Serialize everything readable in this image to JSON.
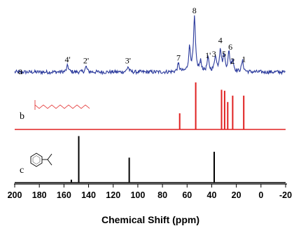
{
  "chart_data": {
    "type": "line",
    "title": "",
    "xlabel": "Chemical Shift (ppm)",
    "ylabel": "",
    "xlim": [
      200,
      -20
    ],
    "x_reversed": true,
    "x_ticks": [
      200,
      180,
      160,
      140,
      120,
      100,
      80,
      60,
      40,
      20,
      0,
      -20
    ],
    "grid": false,
    "colors": {
      "a": "#2b3a9c",
      "b": "#e02020",
      "c": "#000000"
    },
    "series": [
      {
        "name": "a",
        "kind": "noisy-spectrum",
        "peaks": [
          {
            "x": 157,
            "height": 0.12,
            "label": "4'"
          },
          {
            "x": 142,
            "height": 0.1,
            "label": "2'"
          },
          {
            "x": 108,
            "height": 0.1,
            "label": "3'"
          },
          {
            "x": 67,
            "height": 0.15,
            "label": "7"
          },
          {
            "x": 58,
            "height": 0.44,
            "label": ""
          },
          {
            "x": 54,
            "height": 1.0,
            "label": "8"
          },
          {
            "x": 49,
            "height": 0.18,
            "label": ""
          },
          {
            "x": 43,
            "height": 0.25,
            "label": "1'"
          },
          {
            "x": 37,
            "height": 0.3,
            "label": "3"
          },
          {
            "x": 33,
            "height": 0.42,
            "label": "4"
          },
          {
            "x": 30,
            "height": 0.3,
            "label": "5"
          },
          {
            "x": 26,
            "height": 0.35,
            "label": "6"
          },
          {
            "x": 23,
            "height": 0.22,
            "label": "2"
          },
          {
            "x": 15,
            "height": 0.2,
            "label": "1"
          }
        ]
      },
      {
        "name": "b",
        "kind": "stick",
        "peaks": [
          {
            "x": 66,
            "height": 0.33
          },
          {
            "x": 53,
            "height": 0.96
          },
          {
            "x": 32,
            "height": 0.81
          },
          {
            "x": 29.5,
            "height": 0.79
          },
          {
            "x": 27,
            "height": 0.56
          },
          {
            "x": 23,
            "height": 0.69
          },
          {
            "x": 14,
            "height": 0.69
          }
        ]
      },
      {
        "name": "c",
        "kind": "stick",
        "peaks": [
          {
            "x": 154,
            "height": 0.06
          },
          {
            "x": 148,
            "height": 0.95
          },
          {
            "x": 107,
            "height": 0.51
          },
          {
            "x": 38,
            "height": 0.63
          }
        ]
      }
    ]
  }
}
